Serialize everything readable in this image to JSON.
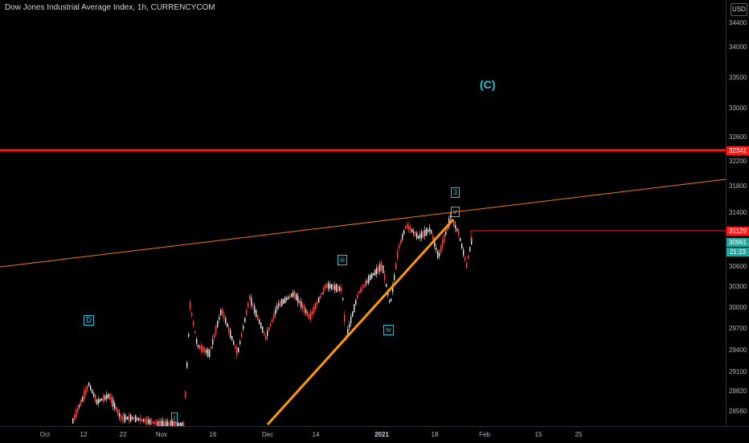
{
  "header": {
    "symbol_title": "Dow Jones Industrial Average Index, 1h, CURRENCYCOM",
    "currency": "USD"
  },
  "price_axis": {
    "ticks": [
      "34400",
      "34000",
      "33500",
      "33000",
      "32600",
      "32200",
      "31800",
      "31400",
      "30600",
      "30300",
      "30000",
      "29700",
      "29400",
      "29100",
      "28820",
      "28560"
    ],
    "tags": {
      "resistance": "32341",
      "last_line": "31129",
      "current": "30961",
      "countdown": "21:23"
    }
  },
  "time_axis": {
    "ticks": [
      "Oct",
      "12",
      "22",
      "Nov",
      "16",
      "Dec",
      "14",
      "2021",
      "18",
      "Feb",
      "15",
      "25"
    ]
  },
  "wave_labels": {
    "C": "(C)",
    "three": "3",
    "v": "v",
    "iii": "iii",
    "iv": "iv",
    "D": "D",
    "i": "i"
  },
  "colors": {
    "background": "#000000",
    "resistance_line": "#ff1a1a",
    "trend_line": "#ff9800",
    "channel_line": "#f57c00",
    "wave_label": "#26c6da",
    "candle_up": "#ffffff",
    "candle_down": "#ef5350",
    "current_tag": "#26a69a"
  }
}
